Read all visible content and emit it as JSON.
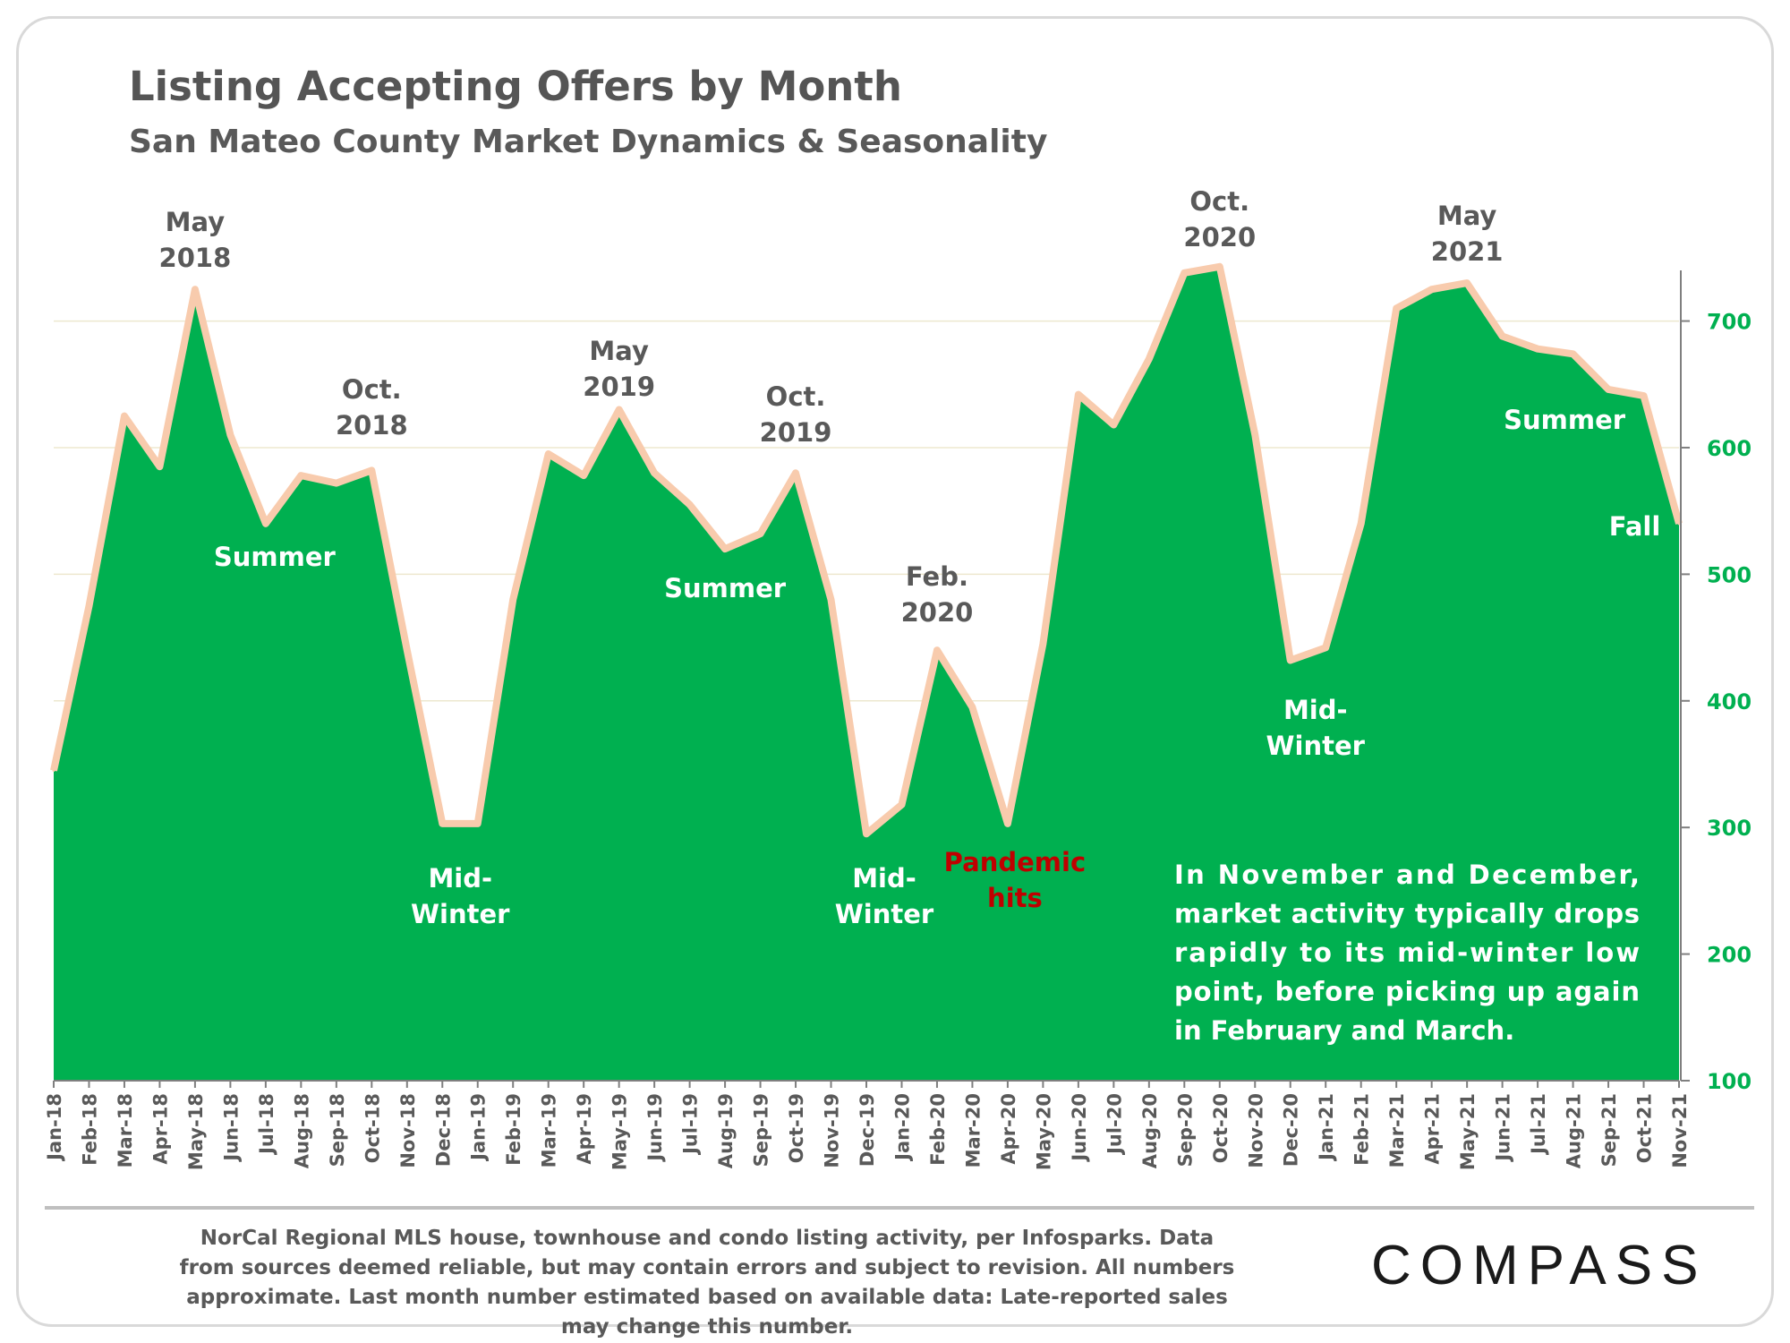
{
  "title": "Listing Accepting Offers by Month",
  "subtitle": "San Mateo County Market Dynamics & Seasonality",
  "source_note": "NorCal Regional MLS house, townhouse and condo listing activity, per Infosparks. Data from sources deemed reliable, but may contain errors and subject to revision. All numbers approximate. Last month number estimated based on available data: Late-reported sales may change this number.",
  "logo": "COMPASS",
  "colors": {
    "area": "#00b050",
    "outline": "#f8cbad",
    "axis_text": "#00b050",
    "label_dark": "#595959",
    "label_light": "#ffffff",
    "label_red": "#c00000"
  },
  "chart_data": {
    "type": "area",
    "categories": [
      "Jan-18",
      "Feb-18",
      "Mar-18",
      "Apr-18",
      "May-18",
      "Jun-18",
      "Jul-18",
      "Aug-18",
      "Sep-18",
      "Oct-18",
      "Nov-18",
      "Dec-18",
      "Jan-19",
      "Feb-19",
      "Mar-19",
      "Apr-19",
      "May-19",
      "Jun-19",
      "Jul-19",
      "Aug-19",
      "Sep-19",
      "Oct-19",
      "Nov-19",
      "Dec-19",
      "Jan-20",
      "Feb-20",
      "Mar-20",
      "Apr-20",
      "May-20",
      "Jun-20",
      "Jul-20",
      "Aug-20",
      "Sep-20",
      "Oct-20",
      "Nov-20",
      "Dec-20",
      "Jan-21",
      "Feb-21",
      "Mar-21",
      "Apr-21",
      "May-21",
      "Jun-21",
      "Jul-21",
      "Aug-21",
      "Sep-21",
      "Oct-21",
      "Nov-21"
    ],
    "values": [
      345,
      475,
      625,
      585,
      725,
      610,
      540,
      578,
      572,
      582,
      440,
      303,
      303,
      480,
      595,
      578,
      630,
      580,
      555,
      520,
      532,
      580,
      480,
      295,
      318,
      440,
      395,
      303,
      445,
      642,
      618,
      670,
      738,
      743,
      610,
      432,
      442,
      540,
      710,
      725,
      730,
      688,
      678,
      674,
      646,
      641,
      540
    ],
    "ylim": [
      100,
      740
    ],
    "yticks": [
      100,
      200,
      300,
      400,
      500,
      600,
      700
    ],
    "y_axis_position": "right",
    "grid": true,
    "annotations": [
      {
        "text": "May\n2018",
        "at": "May-18",
        "style": "dark"
      },
      {
        "text": "Oct.\n2018",
        "at": "Oct-18",
        "style": "dark"
      },
      {
        "text": "May\n2019",
        "at": "May-19",
        "style": "dark"
      },
      {
        "text": "Oct.\n2019",
        "at": "Oct-19",
        "style": "dark"
      },
      {
        "text": "Feb.\n2020",
        "at": "Feb-20",
        "style": "dark"
      },
      {
        "text": "Oct.\n2020",
        "at": "Oct-20",
        "style": "dark"
      },
      {
        "text": "May\n2021",
        "at": "May-21",
        "style": "dark"
      },
      {
        "text": "Summer",
        "at": "Jul-18",
        "style": "light"
      },
      {
        "text": "Summer",
        "at": "Aug-19",
        "style": "light"
      },
      {
        "text": "Summer",
        "at": "Jul-21",
        "style": "light"
      },
      {
        "text": "Mid-\nWinter",
        "at": "Dec-18",
        "style": "light"
      },
      {
        "text": "Mid-\nWinter",
        "at": "Dec-19",
        "style": "light"
      },
      {
        "text": "Mid-\nWinter",
        "at": "Dec-20",
        "style": "light"
      },
      {
        "text": "Pandemic\nhits",
        "at": "Apr-20",
        "style": "red"
      },
      {
        "text": "Fall",
        "at": "Oct-21",
        "style": "light"
      }
    ],
    "note": "In November and December, market activity typically drops rapidly to its mid-winter low point, before picking up again in February and March."
  }
}
